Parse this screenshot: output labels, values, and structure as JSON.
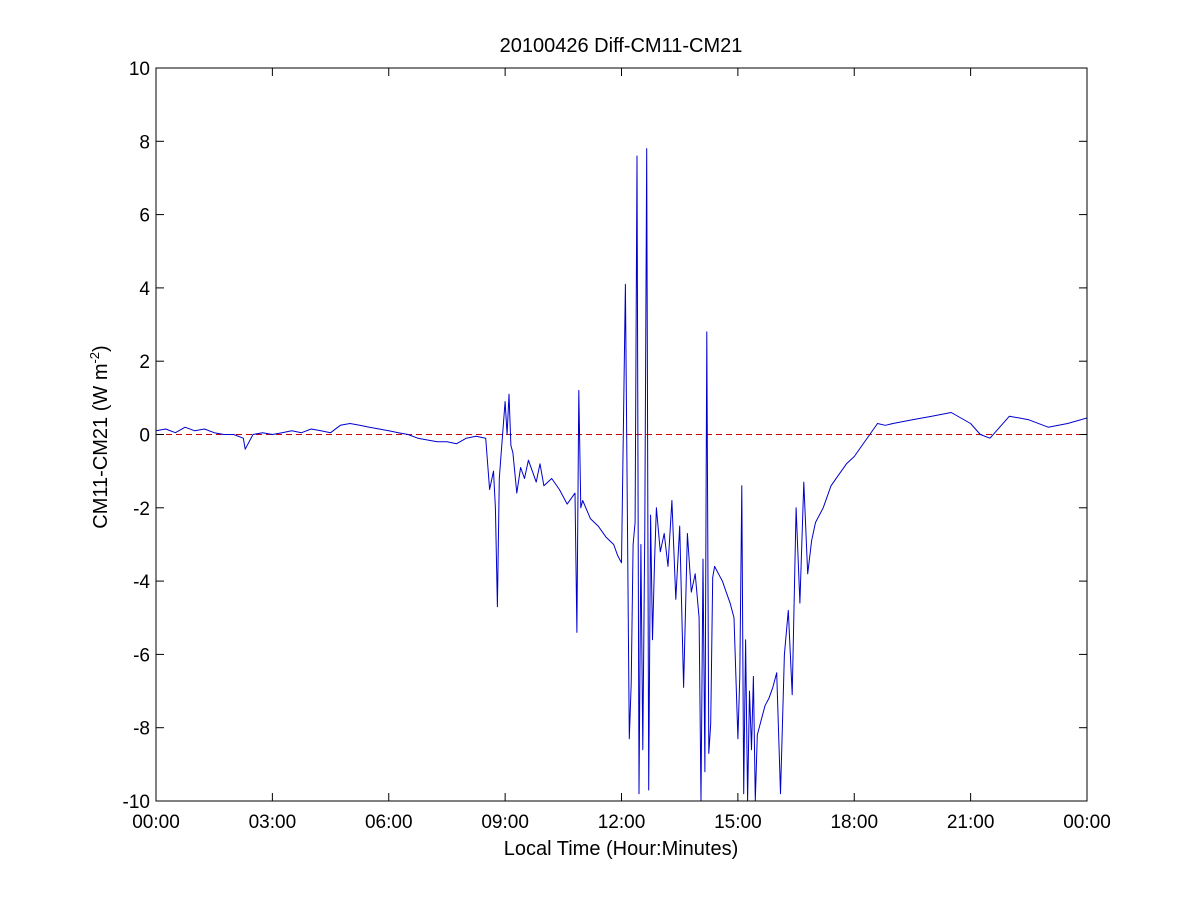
{
  "chart_data": {
    "type": "line",
    "title": "20100426 Diff-CM11-CM21",
    "xlabel": "Local Time (Hour:Minutes)",
    "ylabel": {
      "main": "CM11-CM21 (W m",
      "superscript": "-2",
      "suffix": ")"
    },
    "x_unit": "hours",
    "xlim": [
      0,
      24
    ],
    "ylim": [
      -10,
      10
    ],
    "x_ticks": [
      0,
      3,
      6,
      9,
      12,
      15,
      18,
      21,
      24
    ],
    "x_tick_labels": [
      "00:00",
      "03:00",
      "06:00",
      "09:00",
      "12:00",
      "15:00",
      "18:00",
      "21:00",
      "00:00"
    ],
    "y_ticks": [
      -10,
      -8,
      -6,
      -4,
      -2,
      0,
      2,
      4,
      6,
      8,
      10
    ],
    "y_tick_labels": [
      "-10",
      "-8",
      "-6",
      "-4",
      "-2",
      "0",
      "2",
      "4",
      "6",
      "8",
      "10"
    ],
    "grid": false,
    "reference_line": {
      "y": 0,
      "style": "dashed",
      "color": "#cc0000"
    },
    "series": [
      {
        "color": "#0000cc",
        "x": [
          0.0,
          0.25,
          0.5,
          0.75,
          1.0,
          1.25,
          1.5,
          1.75,
          2.0,
          2.25,
          2.3,
          2.5,
          2.75,
          3.0,
          3.25,
          3.5,
          3.75,
          4.0,
          4.25,
          4.5,
          4.75,
          5.0,
          5.25,
          5.5,
          5.75,
          6.0,
          6.25,
          6.5,
          6.75,
          7.0,
          7.25,
          7.5,
          7.75,
          8.0,
          8.25,
          8.5,
          8.6,
          8.7,
          8.75,
          8.8,
          8.85,
          8.9,
          9.0,
          9.05,
          9.1,
          9.15,
          9.2,
          9.3,
          9.4,
          9.5,
          9.6,
          9.7,
          9.8,
          9.9,
          10.0,
          10.2,
          10.4,
          10.6,
          10.8,
          10.85,
          10.9,
          10.95,
          11.0,
          11.2,
          11.4,
          11.6,
          11.8,
          11.9,
          12.0,
          12.1,
          12.2,
          12.25,
          12.3,
          12.35,
          12.4,
          12.45,
          12.5,
          12.55,
          12.6,
          12.65,
          12.7,
          12.75,
          12.8,
          12.85,
          12.9,
          13.0,
          13.1,
          13.2,
          13.3,
          13.4,
          13.5,
          13.6,
          13.7,
          13.8,
          13.9,
          14.0,
          14.05,
          14.1,
          14.15,
          14.2,
          14.25,
          14.3,
          14.35,
          14.4,
          14.5,
          14.6,
          14.7,
          14.8,
          14.9,
          15.0,
          15.05,
          15.1,
          15.15,
          15.2,
          15.25,
          15.3,
          15.35,
          15.4,
          15.45,
          15.5,
          15.6,
          15.7,
          15.8,
          15.9,
          16.0,
          16.1,
          16.2,
          16.3,
          16.4,
          16.5,
          16.6,
          16.7,
          16.8,
          16.9,
          17.0,
          17.2,
          17.4,
          17.6,
          17.8,
          18.0,
          18.2,
          18.4,
          18.6,
          18.8,
          19.0,
          19.5,
          20.0,
          20.5,
          21.0,
          21.25,
          21.5,
          21.75,
          22.0,
          22.5,
          23.0,
          23.5,
          24.0
        ],
        "y": [
          0.1,
          0.15,
          0.05,
          0.2,
          0.1,
          0.15,
          0.05,
          0.0,
          0.0,
          -0.1,
          -0.4,
          0.0,
          0.05,
          0.0,
          0.05,
          0.1,
          0.05,
          0.15,
          0.1,
          0.05,
          0.25,
          0.3,
          0.25,
          0.2,
          0.15,
          0.1,
          0.05,
          0.0,
          -0.1,
          -0.15,
          -0.2,
          -0.2,
          -0.25,
          -0.1,
          -0.05,
          -0.1,
          -1.5,
          -1.0,
          -2.0,
          -4.7,
          -1.2,
          -0.5,
          0.9,
          0.0,
          1.1,
          -0.3,
          -0.5,
          -1.6,
          -0.9,
          -1.2,
          -0.7,
          -1.0,
          -1.3,
          -0.8,
          -1.4,
          -1.2,
          -1.5,
          -1.9,
          -1.6,
          -5.4,
          1.2,
          -2.0,
          -1.8,
          -2.3,
          -2.5,
          -2.8,
          -3.0,
          -3.3,
          -3.5,
          4.1,
          -8.3,
          -6.8,
          -3.0,
          -2.4,
          7.6,
          -9.8,
          -3.0,
          -8.6,
          -2.6,
          7.8,
          -9.7,
          -2.2,
          -5.6,
          -3.5,
          -2.0,
          -3.2,
          -2.7,
          -3.6,
          -1.8,
          -4.5,
          -2.5,
          -6.9,
          -2.7,
          -4.3,
          -3.8,
          -5.0,
          -10.0,
          -3.4,
          -9.2,
          2.8,
          -8.7,
          -7.9,
          -3.9,
          -3.6,
          -3.8,
          -4.0,
          -4.3,
          -4.6,
          -5.0,
          -8.3,
          -6.6,
          -1.4,
          -9.8,
          -5.6,
          -10.0,
          -7.0,
          -8.6,
          -6.6,
          -10.0,
          -8.2,
          -7.8,
          -7.4,
          -7.2,
          -6.9,
          -6.5,
          -9.8,
          -6.0,
          -4.8,
          -7.1,
          -2.0,
          -4.6,
          -1.3,
          -3.8,
          -2.9,
          -2.4,
          -2.0,
          -1.4,
          -1.1,
          -0.8,
          -0.6,
          -0.3,
          0.0,
          0.3,
          0.25,
          0.3,
          0.4,
          0.5,
          0.6,
          0.3,
          0.0,
          -0.1,
          0.2,
          0.5,
          0.4,
          0.2,
          0.3,
          0.45
        ]
      }
    ]
  }
}
